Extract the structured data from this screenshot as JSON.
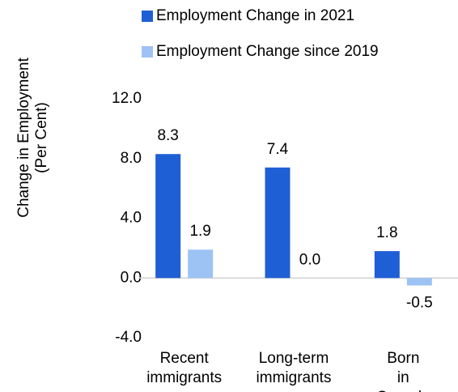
{
  "chart_data": {
    "type": "bar",
    "y_label": [
      "Change in Employment",
      "(Per Cent)"
    ],
    "categories": [
      "Recent immigrants",
      "Long-term immigrants",
      "Born in Canada"
    ],
    "series": [
      {
        "name": "Employment Change in 2021",
        "color": "#1f5fd6",
        "values": [
          8.3,
          7.4,
          1.8
        ]
      },
      {
        "name": "Employment Change since 2019",
        "color": "#9dc3f5",
        "values": [
          1.9,
          0,
          -0.5
        ],
        "value_labels": [
          "1.9",
          "0.0",
          "-0.5"
        ]
      }
    ],
    "ylim": [
      -4,
      12
    ],
    "yticks": [
      {
        "value": -4,
        "label": "-4.0"
      },
      {
        "value": 0,
        "label": "0.0"
      },
      {
        "value": 4,
        "label": "4.0"
      },
      {
        "value": 8,
        "label": "8.0"
      },
      {
        "value": 12,
        "label": "12.0"
      }
    ],
    "grid": false
  }
}
